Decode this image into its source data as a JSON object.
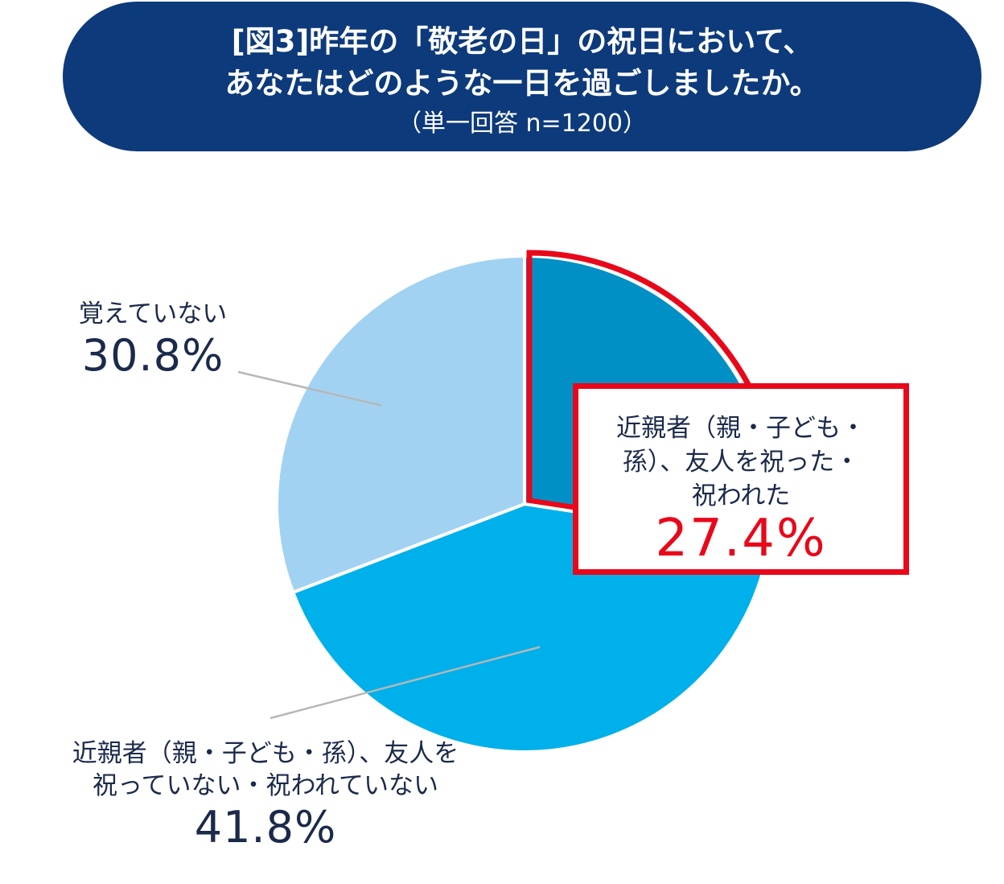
{
  "title": {
    "line1": "[図3]昨年の「敬老の日」の祝日において、",
    "line2": "あなたはどのような一日を過ごしましたか。",
    "line3": "（単一回答 n=1200）"
  },
  "chart_data": {
    "type": "pie",
    "unit": "%",
    "slices": [
      {
        "label": "近親者（親・子ども・孫）、友人を祝った・祝われた",
        "value": 27.4,
        "value_text": "27.4%",
        "color": "#0090c6",
        "highlighted": true
      },
      {
        "label": "近親者（親・子ども・孫）、友人を祝っていない・祝われていない",
        "value": 41.8,
        "value_text": "41.8%",
        "color": "#00b0ea"
      },
      {
        "label": "覚えていない",
        "value": 30.8,
        "value_text": "30.8%",
        "color": "#a2d2f2"
      }
    ],
    "start_angle_deg": 0,
    "direction": "clockwise",
    "highlight_color": "#e8081a"
  },
  "labels": {
    "callout_text": "近親者（親・子ども・\n孫）、友人を祝った・\n祝われた",
    "bottom_line1": "近親者（親・子ども・孫）、友人を",
    "bottom_line2": "祝っていない・祝われていない",
    "left_text": "覚えていない"
  }
}
